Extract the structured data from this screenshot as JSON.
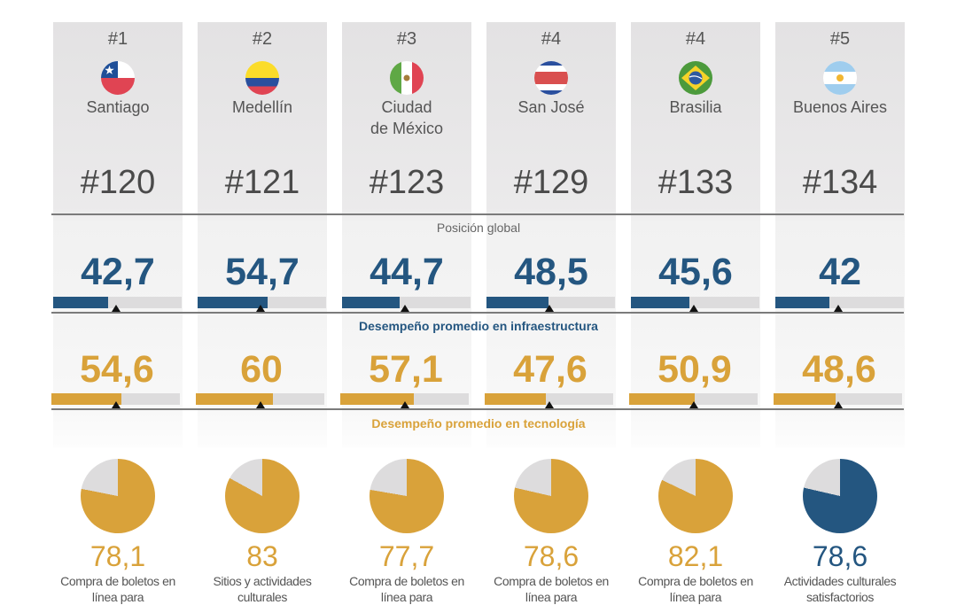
{
  "sections": {
    "global_label": "Posición global",
    "infra_label": "Desempeño promedio en infraestructura",
    "tech_label": "Desempeño promedio en tecnología"
  },
  "colors": {
    "infra": "#245680",
    "tech": "#d9a23a",
    "track": "#dddcdd",
    "pie_rest": "#dddcdd"
  },
  "cities": [
    {
      "rank": "#1",
      "name": "Santiago",
      "flag": "chile-flag-icon",
      "global": "#120",
      "infra": "42,7",
      "tech": "54,6",
      "pie_value": "78,1",
      "pie_desc_1": "Compra de boletos en",
      "pie_desc_2": "línea para",
      "pie_color": "tech"
    },
    {
      "rank": "#2",
      "name": "Medellín",
      "flag": "colombia-flag-icon",
      "global": "#121",
      "infra": "54,7",
      "tech": "60",
      "pie_value": "83",
      "pie_desc_1": "Sitios y actividades",
      "pie_desc_2": "culturales",
      "pie_color": "tech"
    },
    {
      "rank": "#3",
      "name": "Ciudad de México",
      "name_1": "Ciudad",
      "name_2": "de México",
      "flag": "mexico-flag-icon",
      "global": "#123",
      "infra": "44,7",
      "tech": "57,1",
      "pie_value": "77,7",
      "pie_desc_1": "Compra de boletos en",
      "pie_desc_2": "línea para",
      "pie_color": "tech"
    },
    {
      "rank": "#4",
      "name": "San José",
      "flag": "costa-rica-flag-icon",
      "global": "#129",
      "infra": "48,5",
      "tech": "47,6",
      "pie_value": "78,6",
      "pie_desc_1": "Compra de boletos en",
      "pie_desc_2": "línea para",
      "pie_color": "tech"
    },
    {
      "rank": "#4",
      "name": "Brasilia",
      "flag": "brazil-flag-icon",
      "global": "#133",
      "infra": "45,6",
      "tech": "50,9",
      "pie_value": "82,1",
      "pie_desc_1": "Compra de boletos en",
      "pie_desc_2": "línea para",
      "pie_color": "tech"
    },
    {
      "rank": "#5",
      "name": "Buenos Aires",
      "flag": "argentina-flag-icon",
      "global": "#134",
      "infra": "42",
      "tech": "48,6",
      "pie_value": "78,6",
      "pie_desc_1": "Actividades culturales",
      "pie_desc_2": "satisfactorios",
      "pie_color": "infra"
    }
  ],
  "chart_data": [
    {
      "type": "bar",
      "title": "Desempeño promedio en infraestructura",
      "categories": [
        "Santiago",
        "Medellín",
        "Ciudad de México",
        "San José",
        "Brasilia",
        "Buenos Aires"
      ],
      "values": [
        42.7,
        54.7,
        44.7,
        48.5,
        45.6,
        42
      ],
      "reference_marker": 49,
      "ylim": [
        0,
        100
      ],
      "color": "#245680"
    },
    {
      "type": "bar",
      "title": "Desempeño promedio en tecnología",
      "categories": [
        "Santiago",
        "Medellín",
        "Ciudad de México",
        "San José",
        "Brasilia",
        "Buenos Aires"
      ],
      "values": [
        54.6,
        60,
        57.1,
        47.6,
        50.9,
        48.6
      ],
      "reference_marker": 50,
      "ylim": [
        0,
        100
      ],
      "color": "#d9a23a"
    },
    {
      "type": "pie",
      "title": "Mejor indicador por ciudad",
      "categories": [
        "Santiago",
        "Medellín",
        "Ciudad de México",
        "San José",
        "Brasilia",
        "Buenos Aires"
      ],
      "values": [
        78.1,
        83,
        77.7,
        78.6,
        82.1,
        78.6
      ],
      "labels": [
        "Compra de boletos en línea para",
        "Sitios y actividades culturales",
        "Compra de boletos en línea para",
        "Compra de boletos en línea para",
        "Compra de boletos en línea para",
        "Actividades culturales satisfactorios"
      ]
    },
    {
      "type": "table",
      "title": "Posición global",
      "categories": [
        "Santiago",
        "Medellín",
        "Ciudad de México",
        "San José",
        "Brasilia",
        "Buenos Aires"
      ],
      "values": [
        120,
        121,
        123,
        129,
        133,
        134
      ],
      "regional_rank": [
        1,
        2,
        3,
        4,
        4,
        5
      ]
    }
  ]
}
